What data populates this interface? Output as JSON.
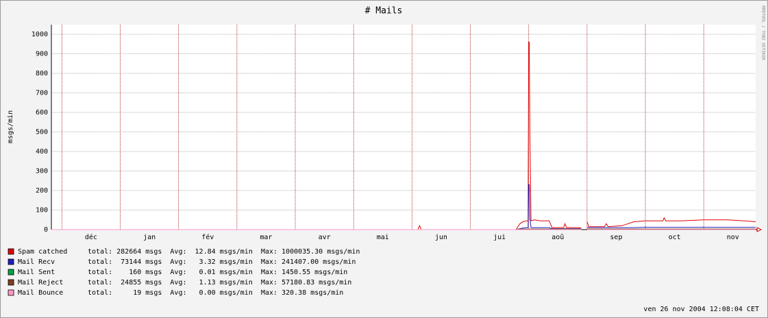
{
  "chart_data": {
    "type": "line",
    "title": "# Mails",
    "y_label": "msgs/min",
    "side_label": "RRDTOOL / TOBI OETIKER",
    "timestamp": "ven 26 nov 2004 12:08:04 CET",
    "categories": [
      "déc",
      "jan",
      "fév",
      "mar",
      "avr",
      "mai",
      "jun",
      "jui",
      "aoû",
      "sep",
      "oct",
      "nov"
    ],
    "xlim": [
      -0.18,
      11.89
    ],
    "xticks": [
      0,
      1,
      2,
      3,
      4,
      5,
      6,
      7,
      8,
      9,
      10,
      11
    ],
    "ylim": [
      0,
      1000
    ],
    "yticks": [
      0,
      100,
      200,
      300,
      400,
      500,
      600,
      700,
      800,
      900,
      1000
    ],
    "grid": true,
    "x": [
      -0.18,
      6.1,
      6.13,
      6.16,
      7.78,
      7.85,
      7.9,
      7.96,
      7.99,
      8.0,
      8.01,
      8.02,
      8.04,
      8.1,
      8.2,
      8.35,
      8.4,
      8.6,
      8.62,
      8.65,
      8.9,
      8.95,
      9.0,
      9.03,
      9.06,
      9.1,
      9.3,
      9.33,
      9.36,
      9.6,
      9.8,
      10.0,
      10.3,
      10.32,
      10.35,
      10.6,
      11.0,
      11.4,
      11.7,
      11.89
    ],
    "series": [
      {
        "name": "Spam catched",
        "color": "#e00000",
        "stats": "total: 282664 msgs  Avg:  12.84 msgs/min  Max: 1000035.30 msgs/min",
        "values": [
          0,
          0,
          20,
          0,
          0,
          30,
          40,
          45,
          45,
          960,
          960,
          500,
          45,
          50,
          45,
          45,
          10,
          10,
          30,
          10,
          10,
          null,
          40,
          15,
          15,
          15,
          15,
          30,
          15,
          20,
          40,
          45,
          45,
          60,
          45,
          45,
          50,
          50,
          45,
          40
        ]
      },
      {
        "name": "Mail Recv",
        "color": "#2020c0",
        "stats": "total:  73144 msgs  Avg:   3.32 msgs/min  Max: 241407.00 msgs/min",
        "values": [
          0,
          0,
          0,
          0,
          0,
          5,
          8,
          10,
          10,
          230,
          230,
          60,
          10,
          10,
          10,
          10,
          5,
          5,
          5,
          5,
          5,
          null,
          10,
          10,
          10,
          10,
          10,
          10,
          10,
          10,
          10,
          12,
          12,
          12,
          12,
          12,
          12,
          12,
          12,
          12
        ]
      },
      {
        "name": "Mail Sent",
        "color": "#00a040",
        "stats": "total:    160 msgs  Avg:   0.01 msgs/min  Max: 1450.55 msgs/min",
        "values": [
          0,
          0,
          0,
          0,
          0,
          0,
          0,
          0,
          0,
          0,
          0,
          0,
          0,
          0,
          0,
          0,
          0,
          0,
          0,
          0,
          0,
          null,
          0,
          0,
          0,
          0,
          0,
          0,
          0,
          0,
          0,
          0,
          0,
          0,
          0,
          0,
          0,
          0,
          0,
          0
        ]
      },
      {
        "name": "Mail Reject",
        "color": "#804020",
        "stats": "total:  24855 msgs  Avg:   1.13 msgs/min  Max: 57180.83 msgs/min",
        "values": [
          0,
          0,
          0,
          0,
          0,
          3,
          3,
          3,
          3,
          3,
          3,
          3,
          3,
          3,
          3,
          3,
          3,
          3,
          3,
          3,
          3,
          null,
          3,
          3,
          3,
          3,
          3,
          3,
          3,
          3,
          3,
          3,
          3,
          3,
          3,
          3,
          3,
          3,
          3,
          3
        ]
      },
      {
        "name": "Mail Bounce",
        "color": "#ff99cc",
        "stats": "total:     19 msgs  Avg:   0.00 msgs/min  Max: 320.38 msgs/min",
        "values": [
          0,
          0,
          0,
          0,
          0,
          0,
          0,
          0,
          0,
          0,
          0,
          0,
          0,
          0,
          0,
          0,
          0,
          0,
          0,
          0,
          0,
          null,
          0,
          0,
          0,
          0,
          0,
          0,
          0,
          0,
          0,
          0,
          0,
          0,
          0,
          0,
          0,
          0,
          0,
          0
        ]
      }
    ]
  }
}
